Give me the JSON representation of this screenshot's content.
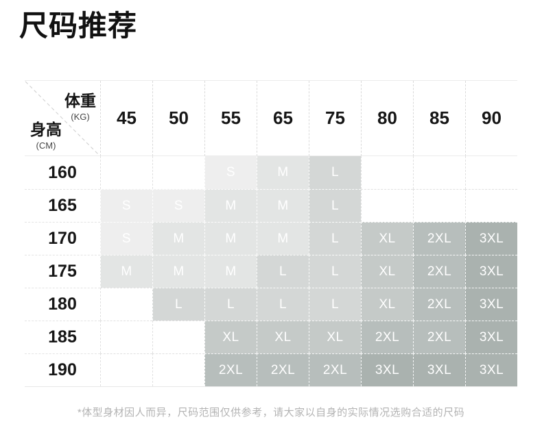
{
  "title": "尺码推荐",
  "chart_data": {
    "type": "table",
    "corner": {
      "col_label": "体重",
      "col_unit": "(KG)",
      "row_label": "身高",
      "row_unit": "(CM)"
    },
    "columns": [
      "45",
      "50",
      "55",
      "65",
      "75",
      "80",
      "85",
      "90"
    ],
    "rows": [
      {
        "height": "160",
        "cells": [
          "",
          "",
          "S",
          "M",
          "L",
          "",
          "",
          ""
        ]
      },
      {
        "height": "165",
        "cells": [
          "S",
          "S",
          "M",
          "M",
          "L",
          "",
          "",
          ""
        ]
      },
      {
        "height": "170",
        "cells": [
          "S",
          "M",
          "M",
          "M",
          "L",
          "XL",
          "2XL",
          "3XL"
        ]
      },
      {
        "height": "175",
        "cells": [
          "M",
          "M",
          "M",
          "L",
          "L",
          "XL",
          "2XL",
          "3XL"
        ]
      },
      {
        "height": "180",
        "cells": [
          "",
          "L",
          "L",
          "L",
          "L",
          "XL",
          "2XL",
          "3XL"
        ]
      },
      {
        "height": "185",
        "cells": [
          "",
          "",
          "XL",
          "XL",
          "XL",
          "2XL",
          "2XL",
          "3XL"
        ]
      },
      {
        "height": "190",
        "cells": [
          "",
          "",
          "2XL",
          "2XL",
          "2XL",
          "3XL",
          "3XL",
          "3XL"
        ]
      }
    ],
    "size_colors": {
      "S": "#eeeeee",
      "M": "#e3e5e4",
      "L": "#d4d7d6",
      "XL": "#c5cac8",
      "2XL": "#b7bebc",
      "3XL": "#aab2af"
    },
    "cell_text_color": "#ffffff",
    "grid_line_color": "#dddddd"
  },
  "footnote": "*体型身材因人而异，尺码范围仅供参考，请大家以自身的实际情况选购合适的尺码"
}
